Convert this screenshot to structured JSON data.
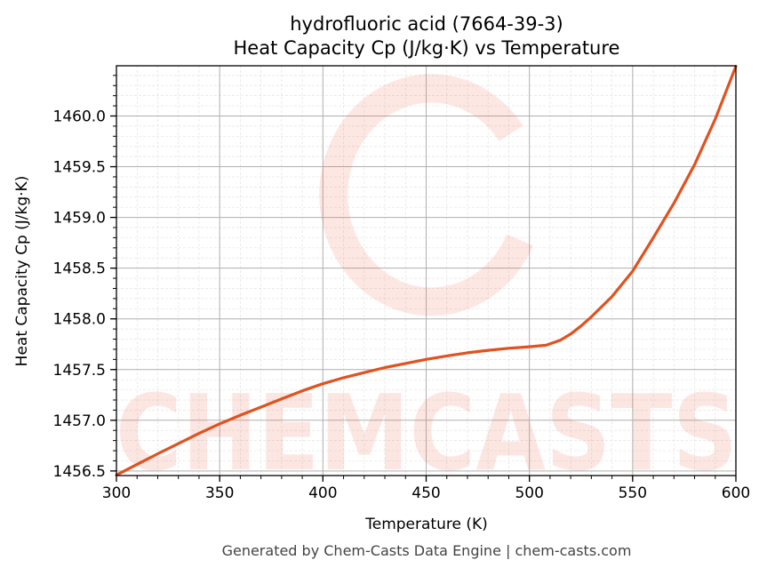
{
  "chart_data": {
    "type": "line",
    "title": "hydrofluoric acid (7664-39-3)",
    "subtitle": "Heat Capacity Cp (J/kg·K) vs Temperature",
    "xlabel": "Temperature (K)",
    "ylabel": "Heat Capacity Cp (J/kg·K)",
    "xlim": [
      300,
      600
    ],
    "ylim": [
      1456.455,
      1460.495
    ],
    "xticks": [
      300,
      350,
      400,
      450,
      500,
      550,
      600
    ],
    "xtick_labels": [
      "300",
      "350",
      "400",
      "450",
      "500",
      "550",
      "600"
    ],
    "yticks": [
      1456.5,
      1457.0,
      1457.5,
      1458.0,
      1458.5,
      1459.0,
      1459.5,
      1460.0
    ],
    "ytick_labels": [
      "1456.5",
      "1457.0",
      "1457.5",
      "1458.0",
      "1458.5",
      "1459.0",
      "1459.5",
      "1460.0"
    ],
    "grid": true,
    "series": [
      {
        "name": "Cp",
        "color": "#e0521f",
        "x": [
          300,
          310,
          320,
          330,
          340,
          350,
          360,
          370,
          380,
          390,
          400,
          410,
          420,
          430,
          440,
          450,
          460,
          470,
          480,
          490,
          500,
          508,
          515,
          520,
          525,
          530,
          540,
          550,
          560,
          570,
          580,
          590,
          600
        ],
        "y": [
          1456.46,
          1456.565,
          1456.67,
          1456.77,
          1456.87,
          1456.965,
          1457.05,
          1457.13,
          1457.21,
          1457.29,
          1457.36,
          1457.42,
          1457.47,
          1457.52,
          1457.56,
          1457.6,
          1457.635,
          1457.665,
          1457.69,
          1457.71,
          1457.725,
          1457.74,
          1457.79,
          1457.85,
          1457.93,
          1458.02,
          1458.22,
          1458.47,
          1458.8,
          1459.14,
          1459.52,
          1459.97,
          1460.49
        ]
      }
    ],
    "watermark": "CHEMCASTS"
  },
  "footer": "Generated by Chem-Casts Data Engine | chem-casts.com"
}
